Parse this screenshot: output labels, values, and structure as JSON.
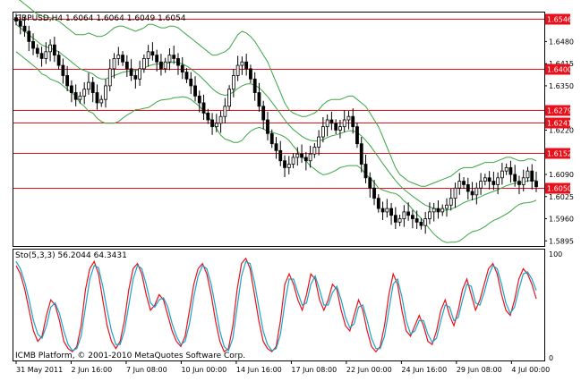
{
  "header": {
    "symbol_line": "GBPUSD,H4  1.6064 1.6064 1.6049 1.6054"
  },
  "indicator": {
    "label": "Sto(5,3,3) 56.2044 64.3431"
  },
  "footer": {
    "copyright": "ICMB Platform, © 2001-2010 MetaQuotes Software Corp."
  },
  "colors": {
    "level_line": "#e8101a",
    "level_badge": "#e8101a",
    "bollinger": "#3aa544",
    "candle": "#000000",
    "stoch_main": "#e8101a",
    "stoch_signal": "#18a3c8"
  },
  "chart_data": [
    {
      "type": "candlestick",
      "title": "GBPUSD,H4",
      "ylim": [
        1.588,
        1.6565
      ],
      "price_ticks": [
        "1.6480",
        "1.6415",
        "1.6350",
        "1.6220",
        "1.6090",
        "1.6025",
        "1.5960",
        "1.5895"
      ],
      "levels": [
        "1.6546",
        "1.6400",
        "1.6279",
        "1.6241",
        "1.6152",
        "1.6050"
      ],
      "x_labels": [
        "31 May 2011",
        "2 Jun 16:00",
        "7 Jun 08:00",
        "10 Jun 00:00",
        "14 Jun 16:00",
        "17 Jun 08:00",
        "22 Jun 00:00",
        "24 Jun 16:00",
        "29 Jun 08:00",
        "4 Jul 00:00"
      ],
      "close": [
        1.654,
        1.6525,
        1.651,
        1.648,
        1.646,
        1.6445,
        1.643,
        1.645,
        1.647,
        1.644,
        1.641,
        1.638,
        1.635,
        1.633,
        1.631,
        1.632,
        1.634,
        1.636,
        1.633,
        1.63,
        1.631,
        1.635,
        1.64,
        1.643,
        1.644,
        1.642,
        1.64,
        1.638,
        1.637,
        1.64,
        1.643,
        1.645,
        1.644,
        1.642,
        1.64,
        1.642,
        1.644,
        1.643,
        1.641,
        1.639,
        1.637,
        1.635,
        1.632,
        1.63,
        1.627,
        1.625,
        1.623,
        1.624,
        1.626,
        1.629,
        1.634,
        1.638,
        1.641,
        1.642,
        1.64,
        1.637,
        1.633,
        1.629,
        1.625,
        1.621,
        1.618,
        1.616,
        1.613,
        1.611,
        1.612,
        1.614,
        1.615,
        1.614,
        1.613,
        1.615,
        1.617,
        1.62,
        1.623,
        1.625,
        1.624,
        1.622,
        1.623,
        1.625,
        1.626,
        1.623,
        1.618,
        1.612,
        1.608,
        1.605,
        1.602,
        1.599,
        1.598,
        1.599,
        1.597,
        1.595,
        1.596,
        1.598,
        1.597,
        1.596,
        1.595,
        1.594,
        1.596,
        1.598,
        1.599,
        1.598,
        1.599,
        1.6,
        1.602,
        1.605,
        1.607,
        1.606,
        1.604,
        1.603,
        1.605,
        1.607,
        1.608,
        1.607,
        1.606,
        1.608,
        1.61,
        1.611,
        1.609,
        1.607,
        1.606,
        1.608,
        1.61,
        1.607,
        1.6054
      ],
      "bb_upper": [
        1.661,
        1.66,
        1.659,
        1.658,
        1.657,
        1.656,
        1.6555,
        1.655,
        1.655,
        1.6545,
        1.654,
        1.653,
        1.652,
        1.651,
        1.65,
        1.65,
        1.65,
        1.6505,
        1.65,
        1.6495,
        1.6495,
        1.65,
        1.651,
        1.652,
        1.6525,
        1.6525,
        1.652,
        1.6515,
        1.651,
        1.6515,
        1.652,
        1.653,
        1.653,
        1.6525,
        1.652,
        1.652,
        1.6525,
        1.6525,
        1.652,
        1.651,
        1.65,
        1.649,
        1.648,
        1.647,
        1.646,
        1.645,
        1.644,
        1.644,
        1.6445,
        1.645,
        1.646,
        1.648,
        1.65,
        1.651,
        1.6505,
        1.6495,
        1.648,
        1.646,
        1.644,
        1.642,
        1.639,
        1.636,
        1.633,
        1.63,
        1.628,
        1.627,
        1.6265,
        1.626,
        1.626,
        1.6265,
        1.627,
        1.628,
        1.6295,
        1.6305,
        1.631,
        1.631,
        1.631,
        1.6315,
        1.632,
        1.632,
        1.631,
        1.63,
        1.629,
        1.627,
        1.625,
        1.623,
        1.62,
        1.617,
        1.614,
        1.611,
        1.609,
        1.608,
        1.607,
        1.6065,
        1.606,
        1.6055,
        1.6055,
        1.606,
        1.6065,
        1.607,
        1.6075,
        1.608,
        1.6085,
        1.6095,
        1.6105,
        1.611,
        1.611,
        1.611,
        1.6115,
        1.612,
        1.6125,
        1.6125,
        1.6125,
        1.613,
        1.6135,
        1.614,
        1.614,
        1.6135,
        1.613,
        1.613,
        1.6135,
        1.6135,
        1.613
      ],
      "bb_middle": [
        1.653,
        1.652,
        1.651,
        1.65,
        1.649,
        1.648,
        1.647,
        1.6465,
        1.646,
        1.6455,
        1.645,
        1.644,
        1.643,
        1.642,
        1.641,
        1.64,
        1.6395,
        1.639,
        1.6385,
        1.6375,
        1.637,
        1.637,
        1.6375,
        1.638,
        1.6385,
        1.639,
        1.6392,
        1.6393,
        1.6395,
        1.6398,
        1.6402,
        1.6408,
        1.6412,
        1.6414,
        1.6414,
        1.6415,
        1.6418,
        1.642,
        1.6418,
        1.6414,
        1.6408,
        1.64,
        1.639,
        1.638,
        1.6368,
        1.6355,
        1.6342,
        1.6332,
        1.6325,
        1.6322,
        1.6325,
        1.6332,
        1.6342,
        1.635,
        1.6355,
        1.6356,
        1.6352,
        1.6344,
        1.6332,
        1.6318,
        1.6302,
        1.6285,
        1.6268,
        1.625,
        1.6235,
        1.6222,
        1.6212,
        1.6202,
        1.6195,
        1.619,
        1.6188,
        1.6188,
        1.6192,
        1.6198,
        1.6203,
        1.6206,
        1.621,
        1.6214,
        1.6218,
        1.6218,
        1.6213,
        1.6203,
        1.619,
        1.6175,
        1.6158,
        1.614,
        1.6122,
        1.6105,
        1.6088,
        1.6072,
        1.6058,
        1.6046,
        1.6036,
        1.6026,
        1.6017,
        1.6008,
        1.6,
        1.5995,
        1.599,
        1.5987,
        1.5985,
        1.5985,
        1.5988,
        1.5993,
        1.6,
        1.6007,
        1.6012,
        1.6016,
        1.602,
        1.6025,
        1.6031,
        1.6036,
        1.604,
        1.6045,
        1.6051,
        1.6057,
        1.6061,
        1.6064,
        1.6066,
        1.6068,
        1.6071,
        1.6072,
        1.6072
      ],
      "bb_lower": [
        1.645,
        1.644,
        1.643,
        1.642,
        1.641,
        1.64,
        1.6385,
        1.638,
        1.637,
        1.6365,
        1.636,
        1.635,
        1.634,
        1.633,
        1.632,
        1.63,
        1.629,
        1.6275,
        1.627,
        1.6255,
        1.6245,
        1.624,
        1.624,
        1.624,
        1.6245,
        1.6255,
        1.6264,
        1.6271,
        1.628,
        1.6281,
        1.6284,
        1.6286,
        1.6294,
        1.6303,
        1.6308,
        1.631,
        1.6311,
        1.6315,
        1.6316,
        1.6318,
        1.6316,
        1.631,
        1.63,
        1.629,
        1.6276,
        1.626,
        1.6244,
        1.6224,
        1.6205,
        1.6194,
        1.619,
        1.6184,
        1.6184,
        1.619,
        1.6205,
        1.6217,
        1.6224,
        1.6228,
        1.6224,
        1.6216,
        1.6214,
        1.621,
        1.6206,
        1.62,
        1.619,
        1.6174,
        1.6159,
        1.6144,
        1.613,
        1.6115,
        1.6106,
        1.6096,
        1.6089,
        1.6091,
        1.6096,
        1.6102,
        1.611,
        1.6113,
        1.6116,
        1.6116,
        1.6116,
        1.6106,
        1.609,
        1.608,
        1.6066,
        1.605,
        1.6044,
        1.604,
        1.6036,
        1.6034,
        1.6026,
        1.6012,
        1.6002,
        1.5987,
        1.5974,
        1.5961,
        1.5945,
        1.593,
        1.5915,
        1.5904,
        1.5895,
        1.589,
        1.5891,
        1.5891,
        1.5895,
        1.5904,
        1.5914,
        1.5922,
        1.5925,
        1.593,
        1.5937,
        1.5947,
        1.5955,
        1.596,
        1.5967,
        1.5974,
        1.5982,
        1.5993,
        1.6002,
        1.6006,
        1.6007,
        1.6009,
        1.6014
      ]
    },
    {
      "type": "line",
      "title": "Sto(5,3,3)",
      "ylim": [
        0,
        100
      ],
      "y_ticks": [
        "100",
        "0"
      ],
      "series": [
        {
          "name": "56.2044",
          "values": [
            88,
            80,
            65,
            45,
            25,
            15,
            20,
            40,
            55,
            50,
            35,
            15,
            8,
            5,
            10,
            30,
            65,
            85,
            92,
            80,
            55,
            30,
            15,
            8,
            15,
            35,
            65,
            85,
            90,
            80,
            60,
            45,
            50,
            60,
            55,
            40,
            25,
            15,
            10,
            20,
            45,
            70,
            85,
            90,
            80,
            60,
            35,
            15,
            5,
            8,
            30,
            65,
            90,
            95,
            85,
            60,
            35,
            15,
            8,
            5,
            10,
            35,
            70,
            80,
            70,
            55,
            45,
            60,
            80,
            75,
            55,
            45,
            55,
            70,
            65,
            45,
            30,
            25,
            40,
            55,
            45,
            25,
            10,
            5,
            10,
            30,
            60,
            80,
            70,
            45,
            25,
            20,
            30,
            40,
            30,
            15,
            12,
            25,
            45,
            55,
            40,
            30,
            45,
            65,
            75,
            60,
            45,
            55,
            70,
            85,
            90,
            80,
            60,
            45,
            40,
            55,
            75,
            85,
            80,
            70,
            56
          ]
        },
        {
          "name": "64.3431",
          "values": [
            92,
            85,
            72,
            55,
            35,
            22,
            18,
            30,
            48,
            52,
            42,
            25,
            12,
            6,
            8,
            20,
            48,
            75,
            88,
            86,
            68,
            45,
            25,
            12,
            12,
            25,
            50,
            75,
            88,
            85,
            70,
            52,
            48,
            55,
            57,
            48,
            32,
            20,
            12,
            15,
            32,
            58,
            78,
            88,
            85,
            70,
            48,
            25,
            10,
            6,
            18,
            48,
            78,
            92,
            90,
            72,
            48,
            25,
            12,
            6,
            8,
            22,
            52,
            75,
            75,
            62,
            50,
            52,
            70,
            78,
            65,
            50,
            50,
            62,
            68,
            55,
            38,
            28,
            32,
            48,
            50,
            35,
            18,
            8,
            8,
            20,
            45,
            70,
            75,
            58,
            35,
            22,
            25,
            35,
            35,
            22,
            14,
            18,
            35,
            50,
            48,
            35,
            38,
            55,
            70,
            68,
            52,
            50,
            62,
            78,
            88,
            85,
            70,
            52,
            42,
            48,
            65,
            80,
            82,
            75,
            64
          ]
        }
      ]
    }
  ]
}
